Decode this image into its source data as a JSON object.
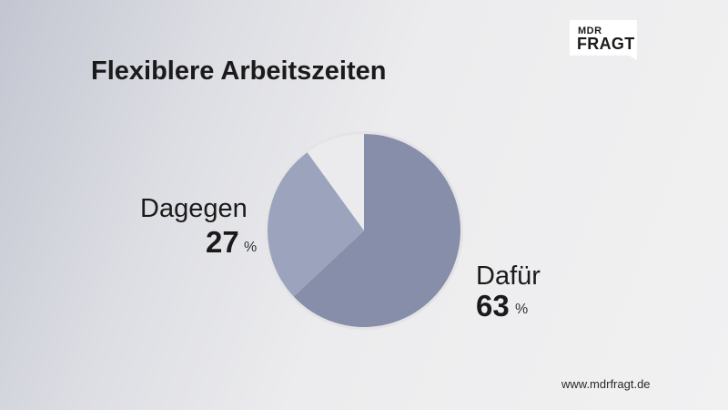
{
  "logo": {
    "top": "MDR",
    "bottom": "FRAGT"
  },
  "title": "Flexiblere Arbeitszeiten",
  "footer": "www.mdrfragt.de",
  "chart_data": {
    "type": "pie",
    "title": "Flexiblere Arbeitszeiten",
    "unit": "%",
    "slices": [
      {
        "label": "Dafür",
        "value": 63,
        "color": "#878ea9",
        "labeled": true
      },
      {
        "label": "Dagegen",
        "value": 27,
        "color": "#9ca4bd",
        "labeled": true
      },
      {
        "label": "",
        "value": 10,
        "color": "#ebebee",
        "labeled": false
      }
    ],
    "ring_color": "#e4e4e7"
  }
}
